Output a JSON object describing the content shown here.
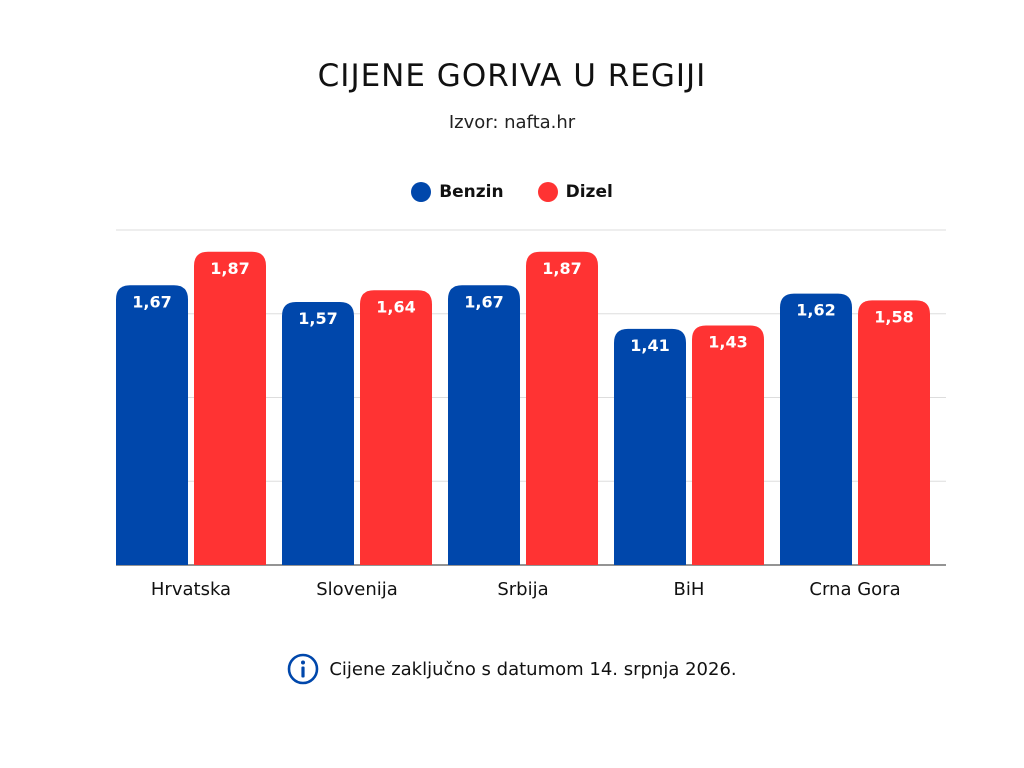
{
  "title": "CIJENE GORIVA U REGIJI",
  "subtitle": "Izvor: nafta.hr",
  "note": "Cijene zaključno s datumom 14. srpnja 2026.",
  "icons": {
    "legend": "circle-dot",
    "note": "info-icon"
  },
  "colors": {
    "benzin": "#0047AB",
    "dizel": "#FF3333",
    "grid": "#dddddd",
    "axis": "#555555",
    "label": "#ffffff"
  },
  "chart_data": {
    "type": "bar",
    "title": "CIJENE GORIVA U REGIJI",
    "categories": [
      "Hrvatska",
      "Slovenija",
      "Srbija",
      "BiH",
      "Crna Gora"
    ],
    "series": [
      {
        "name": "Benzin",
        "values": [
          1.67,
          1.57,
          1.67,
          1.41,
          1.62
        ],
        "labels": [
          "1,67",
          "1,57",
          "1,67",
          "1,41",
          "1,62"
        ]
      },
      {
        "name": "Dizel",
        "values": [
          1.87,
          1.64,
          1.87,
          1.43,
          1.58
        ],
        "labels": [
          "1,87",
          "1,64",
          "1,87",
          "1,43",
          "1,58"
        ]
      }
    ],
    "ylim": [
      0,
      2
    ],
    "grid": true,
    "legend": "top-center",
    "data_labels": "inside-top"
  }
}
